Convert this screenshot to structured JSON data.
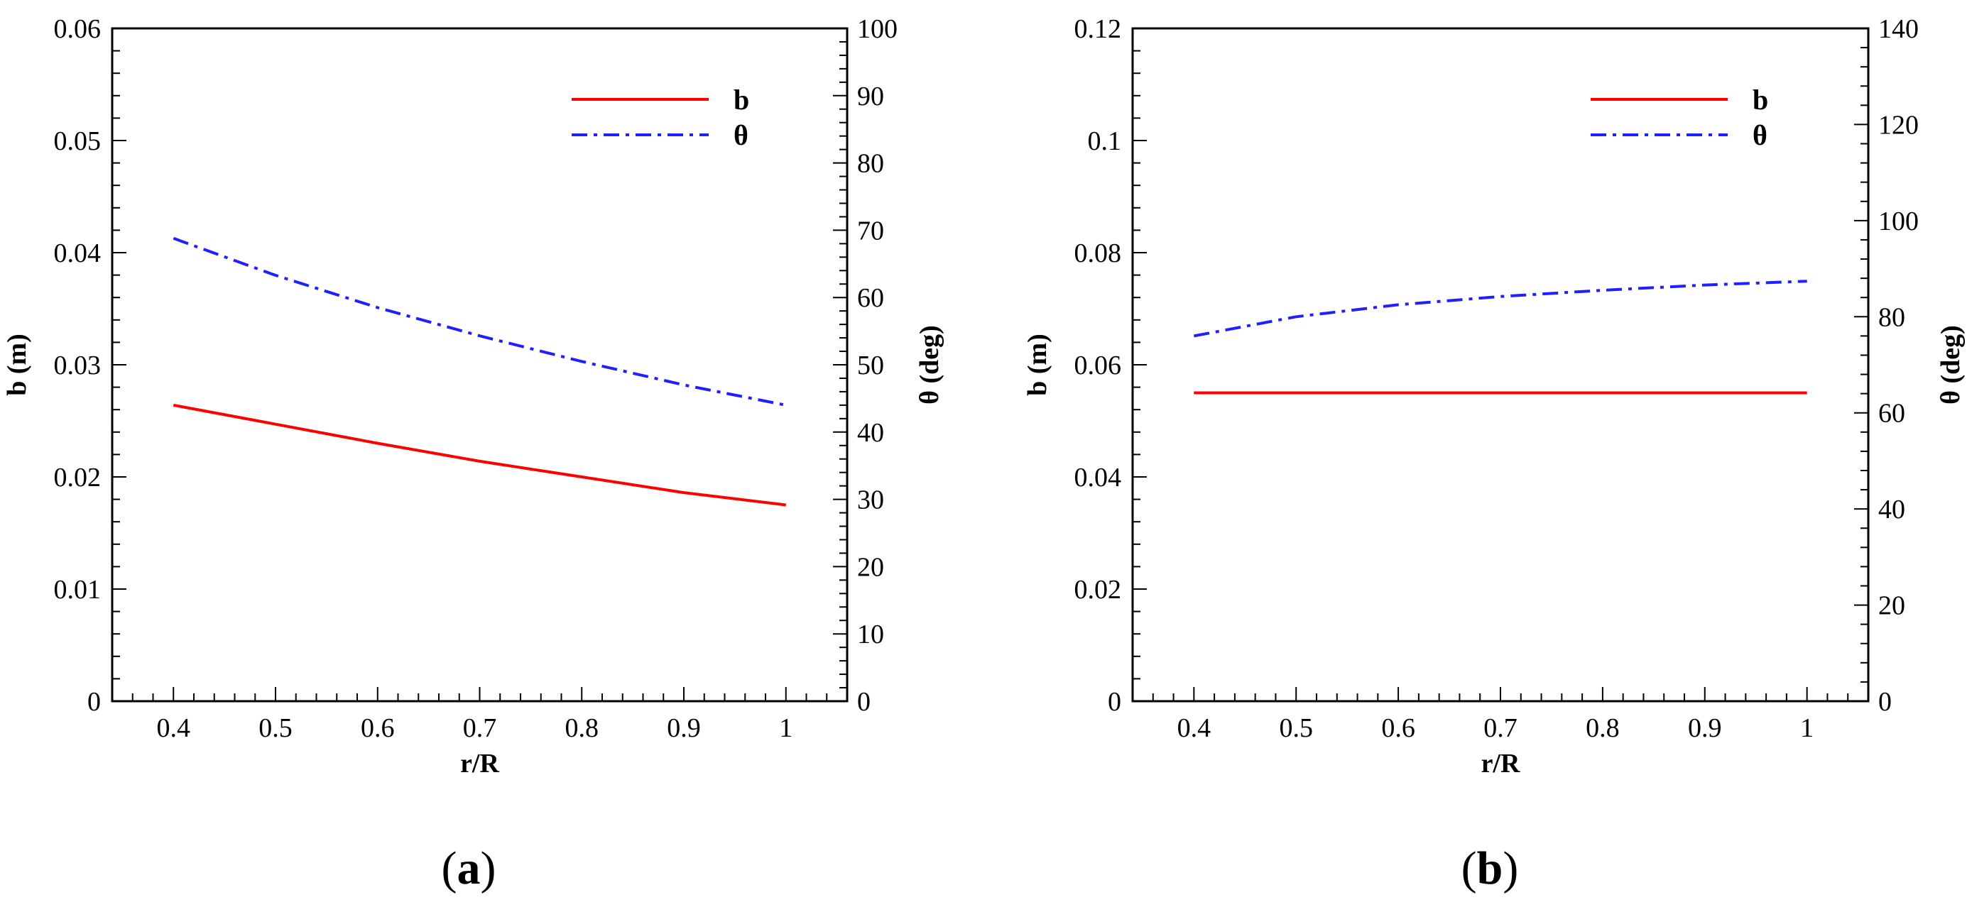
{
  "chart_data": [
    {
      "type": "line",
      "panel_label": "(a)",
      "panel_letter": "a",
      "xlabel": "r/R",
      "ylabel": "b (m)",
      "y2label": "θ (deg)",
      "xlim": [
        0.34,
        1.06
      ],
      "ylim": [
        0,
        0.06
      ],
      "y2lim": [
        0,
        100
      ],
      "xticks": [
        0.4,
        0.5,
        0.6,
        0.7,
        0.8,
        0.9,
        1
      ],
      "xtick_labels": [
        "0.4",
        "0.5",
        "0.6",
        "0.7",
        "0.8",
        "0.9",
        "1"
      ],
      "yticks": [
        0,
        0.01,
        0.02,
        0.03,
        0.04,
        0.05,
        0.06
      ],
      "ytick_labels": [
        "0",
        "0.01",
        "0.02",
        "0.03",
        "0.04",
        "0.05",
        "0.06"
      ],
      "y2ticks": [
        0,
        10,
        20,
        30,
        40,
        50,
        60,
        70,
        80,
        90,
        100
      ],
      "y2tick_labels": [
        "0",
        "10",
        "20",
        "30",
        "40",
        "50",
        "60",
        "70",
        "80",
        "90",
        "100"
      ],
      "legend_position": "top-right",
      "series": [
        {
          "name": "b",
          "axis": "left",
          "color": "#ff0000",
          "style": "solid",
          "x": [
            0.4,
            0.5,
            0.6,
            0.7,
            0.8,
            0.9,
            1.0
          ],
          "y": [
            0.0264,
            0.0247,
            0.023,
            0.0214,
            0.02,
            0.0186,
            0.0175
          ]
        },
        {
          "name": "θ",
          "axis": "right",
          "color": "#1f1fff",
          "style": "dashdot",
          "x": [
            0.4,
            0.5,
            0.6,
            0.7,
            0.8,
            0.9,
            1.0
          ],
          "y": [
            68.8,
            63.3,
            58.5,
            54.3,
            50.5,
            47.0,
            44.0
          ]
        }
      ]
    },
    {
      "type": "line",
      "panel_label": "(b)",
      "panel_letter": "b",
      "xlabel": "r/R",
      "ylabel": "b (m)",
      "y2label": "θ (deg)",
      "xlim": [
        0.34,
        1.06
      ],
      "ylim": [
        0,
        0.12
      ],
      "y2lim": [
        0,
        140
      ],
      "xticks": [
        0.4,
        0.5,
        0.6,
        0.7,
        0.8,
        0.9,
        1
      ],
      "xtick_labels": [
        "0.4",
        "0.5",
        "0.6",
        "0.7",
        "0.8",
        "0.9",
        "1"
      ],
      "yticks": [
        0,
        0.02,
        0.04,
        0.06,
        0.08,
        0.1,
        0.12
      ],
      "ytick_labels": [
        "0",
        "0.02",
        "0.04",
        "0.06",
        "0.08",
        "0.1",
        "0.12"
      ],
      "y2ticks": [
        0,
        20,
        40,
        60,
        80,
        100,
        120,
        140
      ],
      "y2tick_labels": [
        "0",
        "20",
        "40",
        "60",
        "80",
        "100",
        "120",
        "140"
      ],
      "legend_position": "top-right",
      "series": [
        {
          "name": "b",
          "axis": "left",
          "color": "#ff0000",
          "style": "solid",
          "x": [
            0.4,
            0.5,
            0.6,
            0.7,
            0.8,
            0.9,
            1.0
          ],
          "y": [
            0.055,
            0.055,
            0.055,
            0.055,
            0.055,
            0.055,
            0.055
          ]
        },
        {
          "name": "θ",
          "axis": "right",
          "color": "#1f1fff",
          "style": "dashdot",
          "x": [
            0.4,
            0.5,
            0.6,
            0.7,
            0.8,
            0.9,
            1.0
          ],
          "y": [
            76.0,
            80.0,
            82.5,
            84.2,
            85.5,
            86.6,
            87.4
          ]
        }
      ]
    }
  ]
}
